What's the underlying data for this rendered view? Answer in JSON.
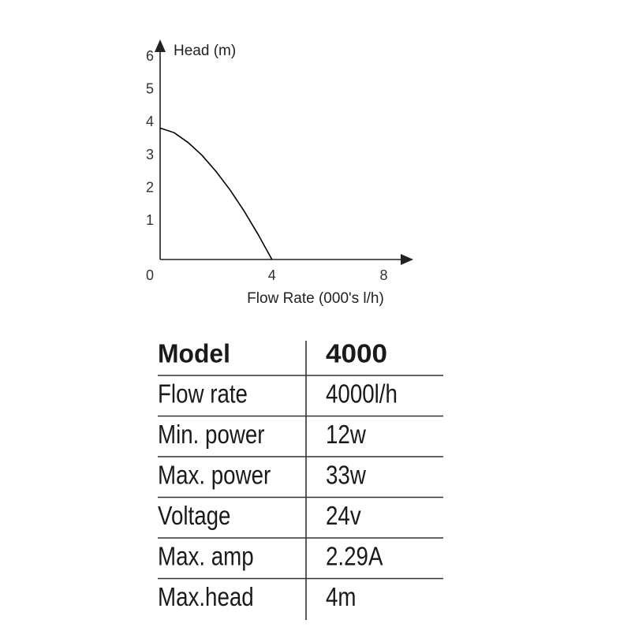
{
  "chart_data": {
    "type": "line",
    "y_label": "Head (m)",
    "x_label": "Flow Rate (000's l/h)",
    "x": [
      0,
      0.5,
      1,
      1.5,
      2,
      2.5,
      3,
      3.5,
      4
    ],
    "series": [
      {
        "color": "#000000",
        "values": [
          4,
          3.86,
          3.56,
          3.17,
          2.68,
          2.12,
          1.48,
          0.77,
          0
        ]
      }
    ],
    "xlim": [
      0,
      9
    ],
    "ylim": [
      0,
      6.6
    ],
    "xticks": [
      0,
      4,
      8
    ],
    "yticks": [
      1,
      2,
      3,
      4,
      5,
      6
    ],
    "grid": false
  },
  "table": {
    "header": [
      "Model",
      "4000"
    ],
    "rows": [
      [
        "Flow rate",
        "4000l/h"
      ],
      [
        "Min. power",
        "12w"
      ],
      [
        "Max. power",
        "33w"
      ],
      [
        "Voltage",
        "24v"
      ],
      [
        "Max. amp",
        "2.29A"
      ],
      [
        "Max.head",
        "4m"
      ]
    ]
  }
}
